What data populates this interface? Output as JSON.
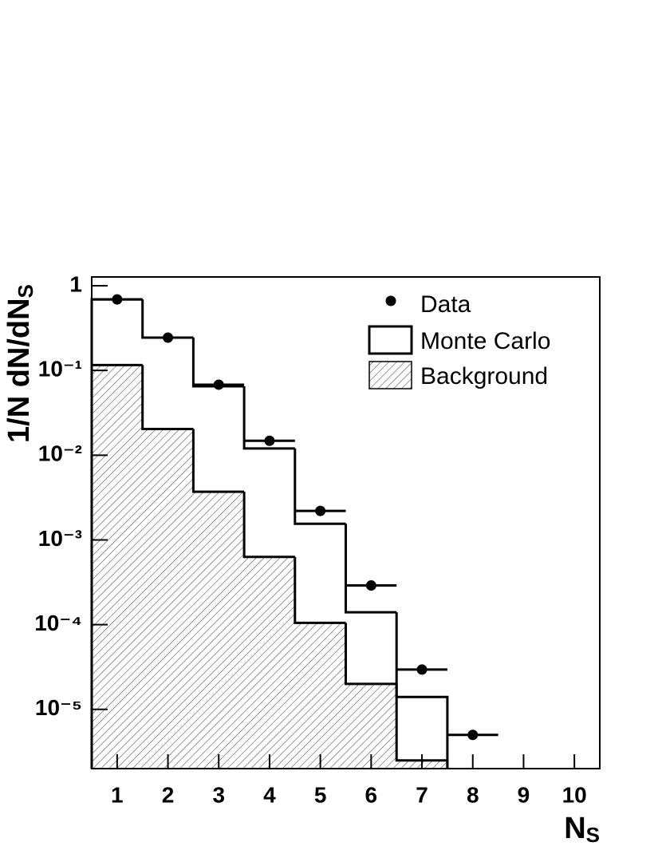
{
  "chart_data": {
    "type": "histogram",
    "log_y": true,
    "xlim": [
      0.5,
      10.5
    ],
    "xticks": [
      1,
      2,
      3,
      4,
      5,
      6,
      7,
      8,
      9,
      10
    ],
    "ylim": [
      2e-06,
      1.27
    ],
    "yticks": [
      1,
      {
        "value": 0.1,
        "label": "10⁻¹"
      },
      {
        "value": 0.01,
        "label": "10⁻²"
      },
      {
        "value": 0.001,
        "label": "10⁻³"
      },
      {
        "value": 0.0001,
        "label": "10⁻⁴"
      },
      {
        "value": 1e-05,
        "label": "10⁻⁵"
      }
    ],
    "xlabel": {
      "text": "N",
      "sub": "S"
    },
    "ylabel": {
      "text": "1/N dN/dN",
      "sub": "S"
    },
    "legend": "top-right",
    "bins": [
      0.5,
      1.5,
      2.5,
      3.5,
      4.5,
      5.5,
      6.5,
      7.5
    ],
    "histograms": [
      {
        "name": "Monte Carlo",
        "color": "#000000",
        "fill": "none",
        "values": [
          0.69,
          0.244,
          0.065,
          0.012,
          0.00155,
          0.00014,
          1.4e-05
        ]
      },
      {
        "name": "Background",
        "color": "#000000",
        "fill": "hatch",
        "values": [
          0.116,
          0.0204,
          0.0037,
          0.00063,
          0.000105,
          2e-05,
          2.5e-06
        ]
      }
    ],
    "points": {
      "name": "Data",
      "color": "#000000",
      "x": [
        1,
        2,
        3,
        4,
        5,
        6,
        7,
        8
      ],
      "xerr": 0.5,
      "values": [
        0.69,
        0.244,
        0.068,
        0.0148,
        0.0022,
        0.00029,
        2.95e-05,
        5e-06
      ]
    }
  }
}
